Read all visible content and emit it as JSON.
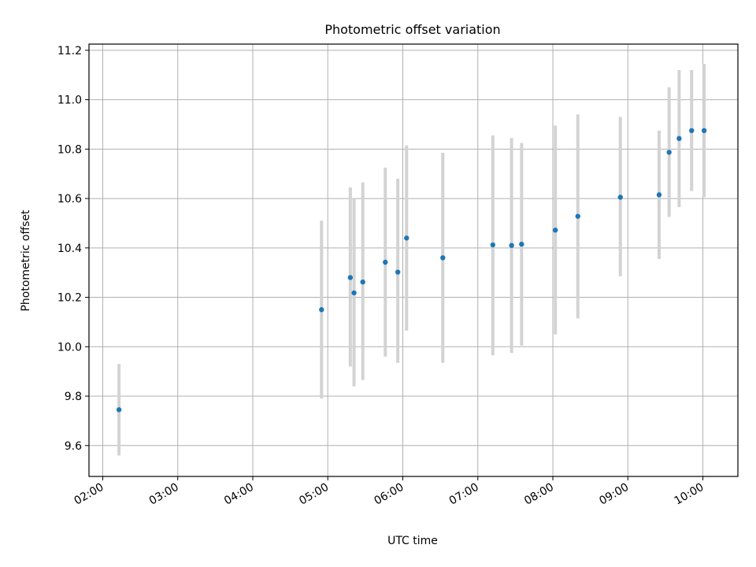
{
  "chart_data": {
    "type": "scatter",
    "title": "Photometric offset variation",
    "xlabel": "UTC time",
    "ylabel": "Photometric offset",
    "x_axis_kind": "time",
    "xlim": [
      "01:49",
      "10:28"
    ],
    "ylim": [
      9.475,
      11.225
    ],
    "grid": true,
    "x_ticks": [
      "02:00",
      "03:00",
      "04:00",
      "05:00",
      "06:00",
      "07:00",
      "08:00",
      "09:00",
      "10:00"
    ],
    "y_ticks": [
      "9.6",
      "9.8",
      "10.0",
      "10.2",
      "10.4",
      "10.6",
      "10.8",
      "11.0",
      "11.2"
    ],
    "points": [
      {
        "x": "02:13",
        "y": 9.745,
        "ylow": 9.56,
        "yhigh": 9.93
      },
      {
        "x": "04:55",
        "y": 10.15,
        "ylow": 9.79,
        "yhigh": 10.51
      },
      {
        "x": "05:18",
        "y": 10.28,
        "ylow": 9.92,
        "yhigh": 10.645
      },
      {
        "x": "05:21",
        "y": 10.218,
        "ylow": 9.84,
        "yhigh": 10.6
      },
      {
        "x": "05:28",
        "y": 10.262,
        "ylow": 9.865,
        "yhigh": 10.665
      },
      {
        "x": "05:46",
        "y": 10.342,
        "ylow": 9.96,
        "yhigh": 10.725
      },
      {
        "x": "05:56",
        "y": 10.302,
        "ylow": 9.935,
        "yhigh": 10.68
      },
      {
        "x": "06:03",
        "y": 10.44,
        "ylow": 10.065,
        "yhigh": 10.815
      },
      {
        "x": "06:32",
        "y": 10.36,
        "ylow": 9.935,
        "yhigh": 10.785
      },
      {
        "x": "07:12",
        "y": 10.412,
        "ylow": 9.965,
        "yhigh": 10.855
      },
      {
        "x": "07:27",
        "y": 10.41,
        "ylow": 9.975,
        "yhigh": 10.845
      },
      {
        "x": "07:35",
        "y": 10.415,
        "ylow": 10.005,
        "yhigh": 10.825
      },
      {
        "x": "08:02",
        "y": 10.472,
        "ylow": 10.05,
        "yhigh": 10.895
      },
      {
        "x": "08:20",
        "y": 10.528,
        "ylow": 10.115,
        "yhigh": 10.94
      },
      {
        "x": "08:54",
        "y": 10.605,
        "ylow": 10.285,
        "yhigh": 10.93
      },
      {
        "x": "09:25",
        "y": 10.615,
        "ylow": 10.355,
        "yhigh": 10.875
      },
      {
        "x": "09:33",
        "y": 10.787,
        "ylow": 10.525,
        "yhigh": 11.05
      },
      {
        "x": "09:41",
        "y": 10.843,
        "ylow": 10.565,
        "yhigh": 11.12
      },
      {
        "x": "09:51",
        "y": 10.875,
        "ylow": 10.63,
        "yhigh": 11.12
      },
      {
        "x": "10:01",
        "y": 10.875,
        "ylow": 10.605,
        "yhigh": 11.145
      }
    ],
    "marker_color": "#1f77b4",
    "errorbar_color": "#d3d3d3",
    "grid_color": "#b0b0b0"
  }
}
